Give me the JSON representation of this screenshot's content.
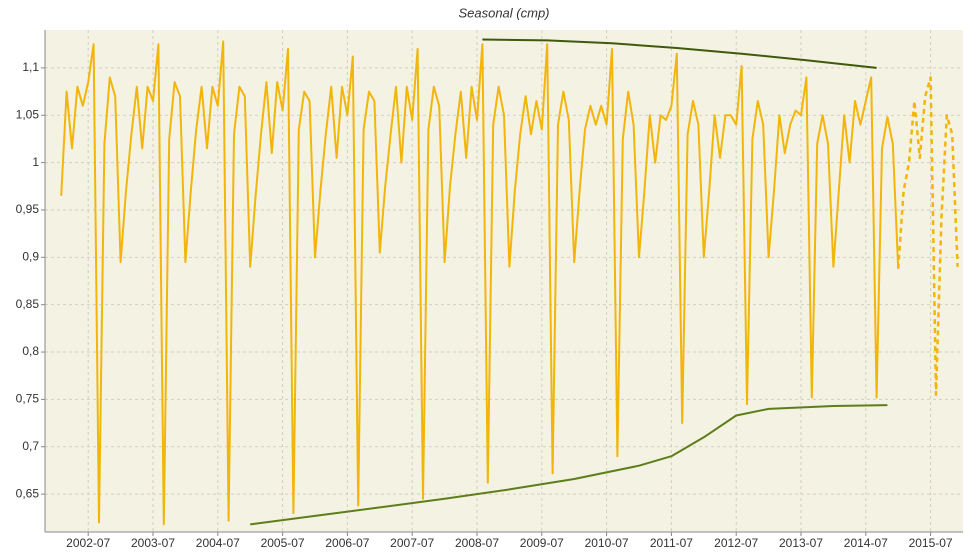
{
  "chart_data": {
    "type": "line",
    "title": "Seasonal (cmp)",
    "grid": true,
    "background": "#f4f2e3",
    "xlim": [
      "2001-11",
      "2016-01"
    ],
    "xticks": [
      "2002-07",
      "2003-07",
      "2004-07",
      "2005-07",
      "2006-07",
      "2007-07",
      "2008-07",
      "2009-07",
      "2010-07",
      "2011-07",
      "2012-07",
      "2013-07",
      "2014-07",
      "2015-07"
    ],
    "ylim": [
      0.61,
      1.14
    ],
    "yticks": [
      {
        "value": 0.65,
        "label": "0,65"
      },
      {
        "value": 0.7,
        "label": "0,7"
      },
      {
        "value": 0.75,
        "label": "0,75"
      },
      {
        "value": 0.8,
        "label": "0,8"
      },
      {
        "value": 0.85,
        "label": "0,85"
      },
      {
        "value": 0.9,
        "label": "0,9"
      },
      {
        "value": 0.95,
        "label": "0,95"
      },
      1,
      {
        "value": 1.05,
        "label": "1,05"
      },
      {
        "value": 1.1,
        "label": "1,1"
      }
    ],
    "series": [
      {
        "color": "#f2b50c",
        "dashed": false,
        "x": [
          "2002-02",
          "2002-03",
          "2002-04",
          "2002-05",
          "2002-06",
          "2002-07",
          "2002-08",
          "2002-09",
          "2002-10",
          "2002-11",
          "2002-12",
          "2003-01",
          "2003-02",
          "2003-03",
          "2003-04",
          "2003-05",
          "2003-06",
          "2003-07",
          "2003-08",
          "2003-09",
          "2003-10",
          "2003-11",
          "2003-12",
          "2004-01",
          "2004-02",
          "2004-03",
          "2004-04",
          "2004-05",
          "2004-06",
          "2004-07",
          "2004-08",
          "2004-09",
          "2004-10",
          "2004-11",
          "2004-12",
          "2005-01",
          "2005-02",
          "2005-03",
          "2005-04",
          "2005-05",
          "2005-06",
          "2005-07",
          "2005-08",
          "2005-09",
          "2005-10",
          "2005-11",
          "2005-12",
          "2006-01",
          "2006-02",
          "2006-03",
          "2006-04",
          "2006-05",
          "2006-06",
          "2006-07",
          "2006-08",
          "2006-09",
          "2006-10",
          "2006-11",
          "2006-12",
          "2007-01",
          "2007-02",
          "2007-03",
          "2007-04",
          "2007-05",
          "2007-06",
          "2007-07",
          "2007-08",
          "2007-09",
          "2007-10",
          "2007-11",
          "2007-12",
          "2008-01",
          "2008-02",
          "2008-03",
          "2008-04",
          "2008-05",
          "2008-06",
          "2008-07",
          "2008-08",
          "2008-09",
          "2008-10",
          "2008-11",
          "2008-12",
          "2009-01",
          "2009-02",
          "2009-03",
          "2009-04",
          "2009-05",
          "2009-06",
          "2009-07",
          "2009-08",
          "2009-09",
          "2009-10",
          "2009-11",
          "2009-12",
          "2010-01",
          "2010-02",
          "2010-03",
          "2010-04",
          "2010-05",
          "2010-06",
          "2010-07",
          "2010-08",
          "2010-09",
          "2010-10",
          "2010-11",
          "2010-12",
          "2011-01",
          "2011-02",
          "2011-03",
          "2011-04",
          "2011-05",
          "2011-06",
          "2011-07",
          "2011-08",
          "2011-09",
          "2011-10",
          "2011-11",
          "2011-12",
          "2012-01",
          "2012-02",
          "2012-03",
          "2012-04",
          "2012-05",
          "2012-06",
          "2012-07",
          "2012-08",
          "2012-09",
          "2012-10",
          "2012-11",
          "2012-12",
          "2013-01",
          "2013-02",
          "2013-03",
          "2013-04",
          "2013-05",
          "2013-06",
          "2013-07",
          "2013-08",
          "2013-09",
          "2013-10",
          "2013-11",
          "2013-12",
          "2014-01",
          "2014-02",
          "2014-03",
          "2014-04",
          "2014-05",
          "2014-06",
          "2014-07",
          "2014-08",
          "2014-09",
          "2014-10",
          "2014-11",
          "2014-12",
          "2015-01"
        ],
        "values": [
          0.965,
          1.075,
          1.015,
          1.08,
          1.06,
          1.085,
          1.125,
          0.62,
          1.02,
          1.09,
          1.07,
          0.895,
          0.97,
          1.03,
          1.08,
          1.015,
          1.08,
          1.065,
          1.125,
          0.618,
          1.025,
          1.085,
          1.07,
          0.895,
          0.97,
          1.035,
          1.08,
          1.015,
          1.08,
          1.06,
          1.128,
          0.622,
          1.03,
          1.08,
          1.07,
          0.89,
          0.965,
          1.03,
          1.085,
          1.01,
          1.085,
          1.055,
          1.12,
          0.63,
          1.035,
          1.075,
          1.065,
          0.9,
          0.97,
          1.03,
          1.08,
          1.005,
          1.08,
          1.05,
          1.112,
          0.638,
          1.035,
          1.075,
          1.065,
          0.905,
          0.975,
          1.03,
          1.08,
          1.0,
          1.08,
          1.045,
          1.12,
          0.645,
          1.035,
          1.08,
          1.06,
          0.895,
          0.975,
          1.03,
          1.075,
          1.005,
          1.08,
          1.045,
          1.125,
          0.662,
          1.04,
          1.08,
          1.05,
          0.89,
          0.97,
          1.03,
          1.07,
          1.03,
          1.065,
          1.035,
          1.125,
          0.672,
          1.04,
          1.075,
          1.045,
          0.895,
          0.97,
          1.035,
          1.06,
          1.04,
          1.06,
          1.04,
          1.12,
          0.69,
          1.025,
          1.075,
          1.04,
          0.9,
          0.97,
          1.05,
          1.0,
          1.05,
          1.045,
          1.06,
          1.115,
          0.725,
          1.03,
          1.065,
          1.04,
          0.9,
          0.97,
          1.05,
          1.005,
          1.05,
          1.05,
          1.04,
          1.102,
          0.745,
          1.025,
          1.065,
          1.04,
          0.9,
          0.97,
          1.05,
          1.01,
          1.04,
          1.055,
          1.05,
          1.09,
          0.752,
          1.02,
          1.05,
          1.02,
          0.89,
          0.97,
          1.05,
          1.0,
          1.065,
          1.04,
          1.065,
          1.09,
          0.752,
          1.015,
          1.048,
          1.02,
          0.888
        ]
      },
      {
        "color": "#f2b50c",
        "dashed": true,
        "x": [
          "2015-01",
          "2015-02",
          "2015-03",
          "2015-04",
          "2015-05",
          "2015-06",
          "2015-07",
          "2015-08",
          "2015-09",
          "2015-10",
          "2015-11",
          "2015-12"
        ],
        "values": [
          0.888,
          0.97,
          1.0,
          1.065,
          1.005,
          1.07,
          1.09,
          0.755,
          0.94,
          1.05,
          1.03,
          0.89
        ]
      },
      {
        "color": "#3f5a0c",
        "dashed": false,
        "x": [
          "2008-08",
          "2009-08",
          "2010-08",
          "2011-08",
          "2012-08",
          "2013-08",
          "2014-09"
        ],
        "values": [
          1.13,
          1.129,
          1.126,
          1.121,
          1.115,
          1.108,
          1.1
        ]
      },
      {
        "color": "#5d7e1a",
        "dashed": false,
        "x": [
          "2005-01",
          "2006-01",
          "2007-01",
          "2008-01",
          "2009-01",
          "2010-01",
          "2011-01",
          "2011-07",
          "2012-01",
          "2012-07",
          "2013-01",
          "2014-01",
          "2014-11"
        ],
        "values": [
          0.618,
          0.627,
          0.636,
          0.645,
          0.655,
          0.666,
          0.68,
          0.69,
          0.71,
          0.733,
          0.74,
          0.743,
          0.744
        ]
      }
    ]
  }
}
